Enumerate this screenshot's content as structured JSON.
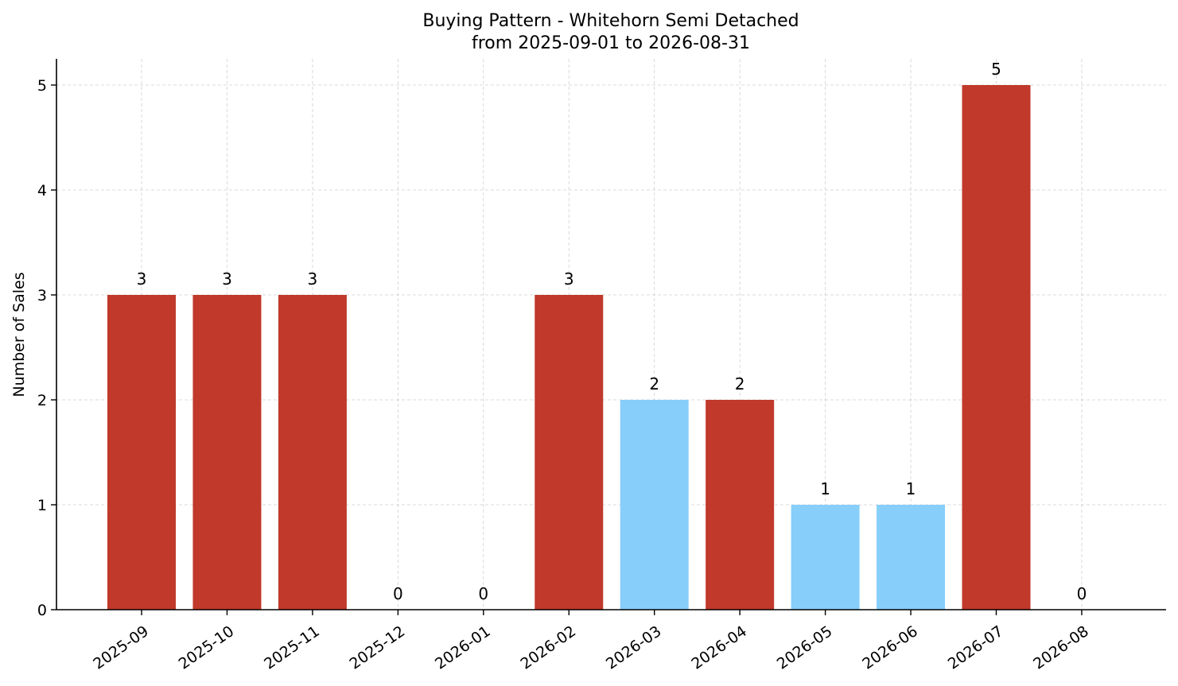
{
  "chart_data": {
    "type": "bar",
    "title": "Buying Pattern - Whitehorn Semi Detached",
    "subtitle": "from 2025-09-01 to 2026-08-31",
    "xlabel": "",
    "ylabel": "Number of Sales",
    "ylim": [
      0,
      5.25
    ],
    "yticks": [
      "0",
      "1",
      "2",
      "3",
      "4",
      "5"
    ],
    "grid": true,
    "categories": [
      "2025-09",
      "2025-10",
      "2025-11",
      "2025-12",
      "2026-01",
      "2026-02",
      "2026-03",
      "2026-04",
      "2026-05",
      "2026-06",
      "2026-07",
      "2026-08"
    ],
    "values": [
      3,
      3,
      3,
      0,
      0,
      3,
      2,
      2,
      1,
      1,
      5,
      0
    ],
    "bar_colors": [
      "#c0392b",
      "#c0392b",
      "#c0392b",
      "#c0392b",
      "#c0392b",
      "#c0392b",
      "#87cefa",
      "#c0392b",
      "#87cefa",
      "#87cefa",
      "#c0392b",
      "#c0392b"
    ]
  }
}
